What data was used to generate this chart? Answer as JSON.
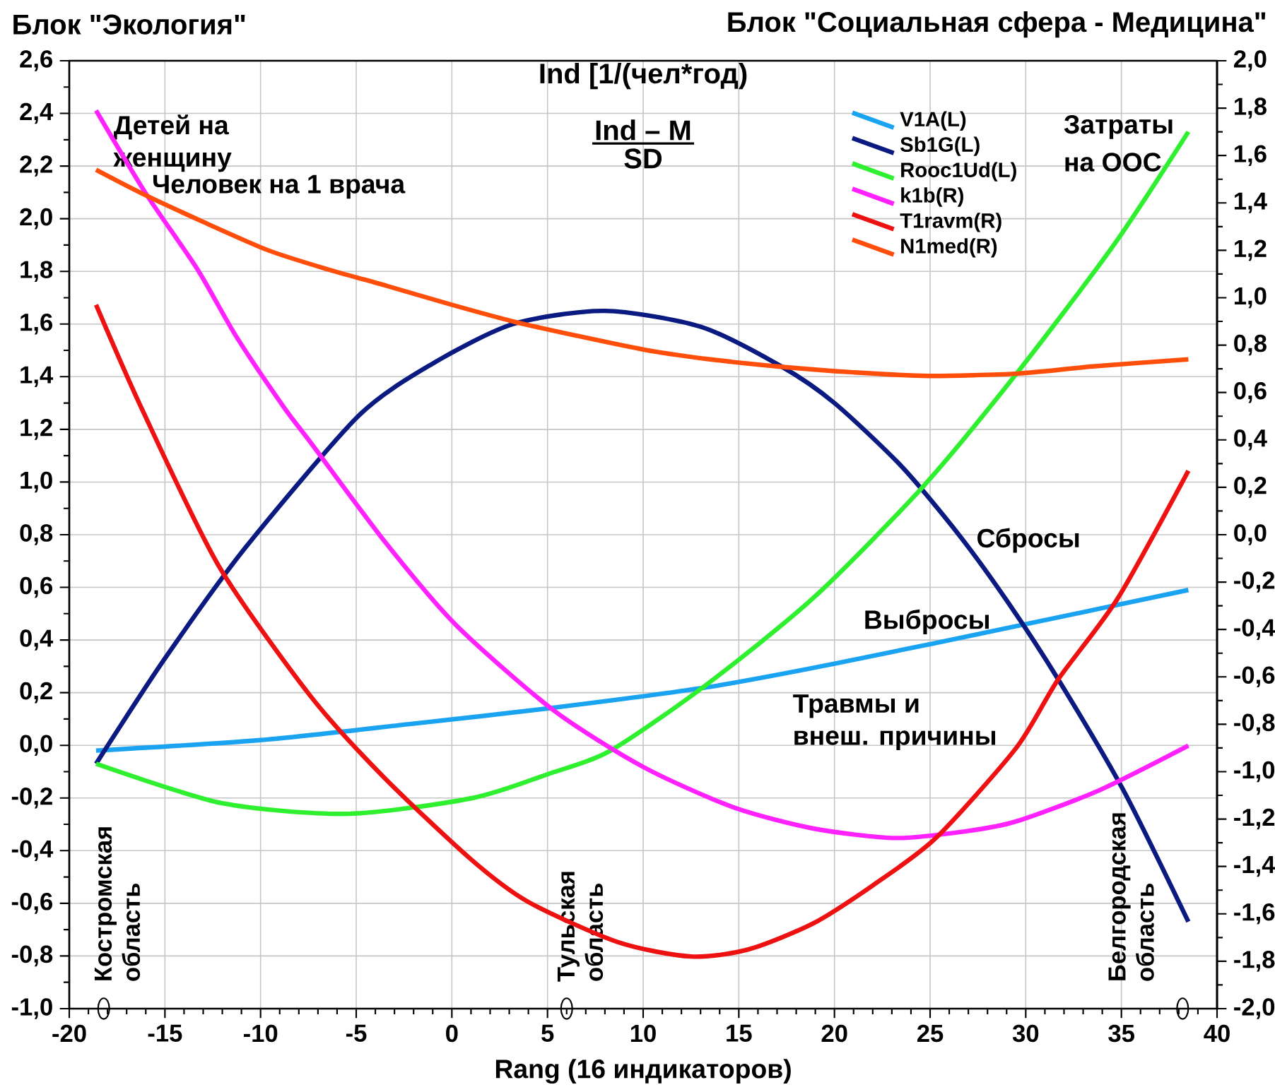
{
  "chart_data": {
    "type": "line",
    "title": "Ind [1/(чел*год)",
    "ylabel": "Блок \"Экология\"",
    "y2label": "Блок \"Социальная сфера - Медицина\"",
    "xlabel": "Rang (16 индикаторов)",
    "xlim": [
      -20,
      40
    ],
    "xticks": [
      -20,
      -15,
      -10,
      -5,
      0,
      5,
      10,
      15,
      20,
      25,
      30,
      35,
      40
    ],
    "ylim": [
      -1.0,
      2.6
    ],
    "yticks": [
      {
        "value": -1.0,
        "label": "-1,0"
      },
      {
        "value": -0.8,
        "label": "-0,8"
      },
      {
        "value": -0.6,
        "label": "-0,6"
      },
      {
        "value": -0.4,
        "label": "-0,4"
      },
      {
        "value": -0.2,
        "label": "-0,2"
      },
      {
        "value": 0.0,
        "label": "0,0"
      },
      {
        "value": 0.2,
        "label": "0,2"
      },
      {
        "value": 0.4,
        "label": "0,4"
      },
      {
        "value": 0.6,
        "label": "0,6"
      },
      {
        "value": 0.8,
        "label": "0,8"
      },
      {
        "value": 1.0,
        "label": "1,0"
      },
      {
        "value": 1.2,
        "label": "1,2"
      },
      {
        "value": 1.4,
        "label": "1,4"
      },
      {
        "value": 1.6,
        "label": "1,6"
      },
      {
        "value": 1.8,
        "label": "1,8"
      },
      {
        "value": 2.0,
        "label": "2,0"
      },
      {
        "value": 2.2,
        "label": "2,2"
      },
      {
        "value": 2.4,
        "label": "2,4"
      },
      {
        "value": 2.6,
        "label": "2,6"
      }
    ],
    "y2lim": [
      -2.0,
      2.0
    ],
    "y2ticks": [
      {
        "value": -2.0,
        "label": "-2,0"
      },
      {
        "value": -1.8,
        "label": "-1,8"
      },
      {
        "value": -1.6,
        "label": "-1,6"
      },
      {
        "value": -1.4,
        "label": "-1,4"
      },
      {
        "value": -1.2,
        "label": "-1,2"
      },
      {
        "value": -1.0,
        "label": "-1,0"
      },
      {
        "value": -0.8,
        "label": "-0,8"
      },
      {
        "value": -0.6,
        "label": "-0,6"
      },
      {
        "value": -0.4,
        "label": "-0,4"
      },
      {
        "value": -0.2,
        "label": "-0,2"
      },
      {
        "value": 0.0,
        "label": "0,0"
      },
      {
        "value": 0.2,
        "label": "0,2"
      },
      {
        "value": 0.4,
        "label": "0,4"
      },
      {
        "value": 0.6,
        "label": "0,6"
      },
      {
        "value": 0.8,
        "label": "0,8"
      },
      {
        "value": 1.0,
        "label": "1,0"
      },
      {
        "value": 1.2,
        "label": "1,2"
      },
      {
        "value": 1.4,
        "label": "1,4"
      },
      {
        "value": 1.6,
        "label": "1,6"
      },
      {
        "value": 1.8,
        "label": "1,8"
      },
      {
        "value": 2.0,
        "label": "2,0"
      }
    ],
    "grid": true,
    "legend": "top right",
    "marker": "none",
    "line_style": "solid",
    "series": [
      {
        "name": "V1A(L)",
        "color": "#1aa3f0",
        "x": [
          -18.6,
          -10,
          -2.3,
          5,
          13.3,
          20,
          30,
          38.5
        ],
        "values": [
          -0.02,
          0.02,
          0.08,
          0.14,
          0.22,
          0.31,
          0.46,
          0.59
        ]
      },
      {
        "name": "Sb1G(L)",
        "color": "#0a1a80",
        "x": [
          -18.6,
          -15,
          -10.8,
          -4.9,
          -1,
          3.2,
          8,
          13,
          17.2,
          20,
          23.5,
          26.5,
          29.1,
          31.7,
          35.1,
          38.5
        ],
        "values": [
          -0.07,
          0.33,
          0.75,
          1.25,
          1.45,
          1.6,
          1.65,
          1.59,
          1.44,
          1.3,
          1.06,
          0.8,
          0.54,
          0.25,
          -0.17,
          -0.67
        ]
      },
      {
        "name": "Rooc1Ud(L)",
        "color": "#2ef02e",
        "x": [
          -18.6,
          -12,
          -5.4,
          1.1,
          5,
          8.3,
          13.3,
          18.9,
          24.6,
          29.5,
          34.6,
          38.5
        ],
        "values": [
          -0.07,
          -0.22,
          -0.26,
          -0.2,
          -0.11,
          -0.02,
          0.23,
          0.56,
          0.98,
          1.41,
          1.9,
          2.33
        ]
      },
      {
        "name": "k1b(R)",
        "color": "#ff22ff",
        "axis": "y2",
        "x": [
          -18.6,
          -16,
          -13.3,
          -11.3,
          -8.8,
          -7.3,
          -3.5,
          0.2,
          5.3,
          10,
          14.7,
          18.9,
          23.2,
          27,
          29.5,
          33.8,
          38.5
        ],
        "values": [
          1.79,
          1.44,
          1.12,
          0.84,
          0.54,
          0.38,
          -0.03,
          -0.38,
          -0.74,
          -0.98,
          -1.15,
          -1.24,
          -1.28,
          -1.25,
          -1.21,
          -1.08,
          -0.89
        ]
      },
      {
        "name": "T1ravm(R)",
        "color": "#ee1111",
        "axis": "y2",
        "x": [
          -18.6,
          -16.2,
          -12.2,
          -7.4,
          -3.6,
          1,
          4,
          8.7,
          12.5,
          15.5,
          18.9,
          22,
          25.3,
          29.5,
          31.7,
          34.8,
          38.5
        ],
        "values": [
          0.97,
          0.53,
          -0.13,
          -0.68,
          -1.02,
          -1.37,
          -1.55,
          -1.72,
          -1.78,
          -1.75,
          -1.64,
          -1.48,
          -1.28,
          -0.9,
          -0.61,
          -0.27,
          0.27
        ]
      },
      {
        "name": "N1med(R)",
        "color": "#ff4d0a",
        "axis": "y2",
        "x": [
          -18.6,
          -16.2,
          -13,
          -9.6,
          -6.5,
          -3.4,
          0,
          3.2,
          6.5,
          10.1,
          13.5,
          17,
          21,
          24.9,
          29.6,
          33.5,
          38.5
        ],
        "values": [
          1.54,
          1.44,
          1.32,
          1.2,
          1.12,
          1.05,
          0.97,
          0.9,
          0.84,
          0.78,
          0.74,
          0.71,
          0.685,
          0.67,
          0.68,
          0.71,
          0.74
        ]
      }
    ],
    "annotations": [
      "Ind – M",
      "SD",
      "Детей на",
      "женщину",
      "Человек на 1 врача",
      "Затраты",
      "на ООС",
      "Сбросы",
      "Выбросы",
      "Травмы и",
      "внеш. причины",
      {
        "text": "Костромская область",
        "x": -18.2,
        "y": -1.0
      },
      {
        "text": "Тульская область",
        "x": 6.0,
        "y": -1.0
      },
      {
        "text": "Белгородская область",
        "x": 38.2,
        "y": -1.0
      }
    ]
  }
}
